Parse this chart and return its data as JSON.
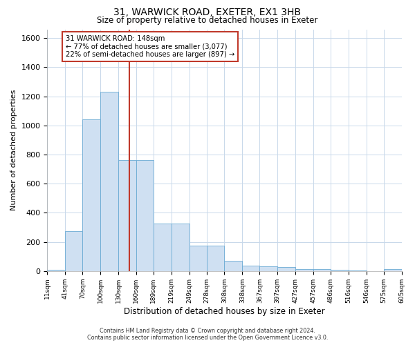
{
  "title": "31, WARWICK ROAD, EXETER, EX1 3HB",
  "subtitle": "Size of property relative to detached houses in Exeter",
  "xlabel": "Distribution of detached houses by size in Exeter",
  "ylabel": "Number of detached properties",
  "footer_line1": "Contains HM Land Registry data © Crown copyright and database right 2024.",
  "footer_line2": "Contains public sector information licensed under the Open Government Licence v3.0.",
  "property_size": 148,
  "property_label": "31 WARWICK ROAD: 148sqm",
  "annotation_line1": "← 77% of detached houses are smaller (3,077)",
  "annotation_line2": "22% of semi-detached houses are larger (897) →",
  "bar_color": "#cfe0f2",
  "bar_edge_color": "#6aaad4",
  "vline_color": "#c0392b",
  "annotation_box_color": "#c0392b",
  "background_color": "#ffffff",
  "grid_color": "#c8d8ea",
  "bin_edges": [
    11,
    41,
    70,
    100,
    130,
    160,
    189,
    219,
    249,
    278,
    308,
    338,
    367,
    397,
    427,
    457,
    486,
    516,
    546,
    575,
    605
  ],
  "bin_labels": [
    "11sqm",
    "41sqm",
    "70sqm",
    "100sqm",
    "130sqm",
    "160sqm",
    "189sqm",
    "219sqm",
    "249sqm",
    "278sqm",
    "308sqm",
    "338sqm",
    "367sqm",
    "397sqm",
    "427sqm",
    "457sqm",
    "486sqm",
    "516sqm",
    "546sqm",
    "575sqm",
    "605sqm"
  ],
  "counts": [
    8,
    275,
    1040,
    1230,
    760,
    760,
    325,
    325,
    175,
    175,
    72,
    38,
    32,
    28,
    15,
    12,
    8,
    4,
    0,
    12,
    0
  ],
  "ylim": [
    0,
    1660
  ],
  "yticks": [
    0,
    200,
    400,
    600,
    800,
    1000,
    1200,
    1400,
    1600
  ]
}
